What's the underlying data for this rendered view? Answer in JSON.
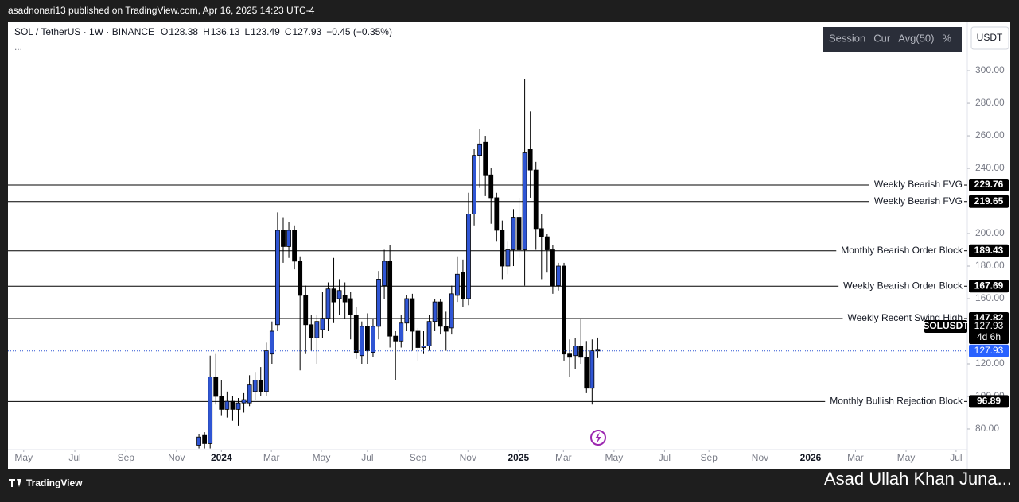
{
  "header": {
    "published": "asadnonari13 published on TradingView.com, Apr 16, 2025 14:23 UTC-4"
  },
  "toolbar": [
    "Session",
    "Cur",
    "Avg(50)",
    "%"
  ],
  "currency": "USDT",
  "footer": {
    "brand": "TradingView",
    "watermark": "Asad Ullah Khan Juna..."
  },
  "chart_data": {
    "type": "candlestick",
    "symbol": "SOL / TetherUS · 1W · BINANCE",
    "ohlc_letters": [
      "O",
      "H",
      "L",
      "C"
    ],
    "change": "−0.45 (−0.35%)",
    "more": "...",
    "ticker": "SOLUSDT",
    "countdown": "4d 6h",
    "up_color": "#2f55d4",
    "down_color": "#000000",
    "x": [
      0,
      1,
      2,
      3,
      4,
      5,
      6,
      7,
      8,
      9,
      10,
      11,
      12,
      13,
      14,
      15,
      16,
      17,
      18,
      19,
      20,
      21,
      22,
      23,
      24,
      25,
      26,
      27,
      28,
      29,
      30,
      31,
      32,
      33,
      34,
      35,
      36,
      37,
      38,
      39,
      40,
      41,
      42,
      43,
      44,
      45,
      46,
      47,
      48,
      49,
      50,
      51,
      52,
      53,
      54,
      55,
      56,
      57,
      58,
      59,
      60,
      61,
      62,
      63,
      64,
      65,
      66,
      67,
      68,
      69,
      70,
      71
    ],
    "open": [
      70,
      76,
      71,
      112,
      100,
      92,
      97,
      92,
      96,
      96,
      103,
      110,
      103,
      126,
      144,
      202,
      192,
      202,
      183,
      162,
      144,
      136,
      141,
      148,
      166,
      160,
      162,
      160,
      150,
      125,
      143,
      127,
      143,
      168,
      183,
      137,
      134,
      145,
      160,
      140,
      130,
      131,
      146,
      158,
      143,
      142,
      162,
      176,
      160,
      212,
      248,
      256,
      236,
      222,
      202,
      180,
      190,
      210,
      190,
      252,
      239,
      203,
      198,
      190,
      168,
      180,
      126,
      125,
      131,
      124,
      105,
      128.38
    ],
    "high": [
      77,
      78,
      125,
      126,
      110,
      103,
      100,
      99,
      102,
      113,
      115,
      118,
      133,
      146,
      213,
      210,
      207,
      205,
      186,
      168,
      150,
      150,
      164,
      170,
      185,
      172,
      170,
      164,
      155,
      146,
      151,
      148,
      177,
      190,
      193,
      140,
      150,
      162,
      163,
      142,
      140,
      150,
      160,
      160,
      152,
      168,
      186,
      184,
      225,
      252,
      264,
      260,
      240,
      225,
      208,
      195,
      215,
      222,
      295,
      275,
      244,
      212,
      200,
      193,
      182,
      182,
      135,
      136,
      148,
      134,
      135,
      136.13
    ],
    "low": [
      68,
      68,
      68,
      95,
      88,
      87,
      85,
      82,
      90,
      94,
      98,
      100,
      100,
      120,
      140,
      182,
      185,
      178,
      116,
      126,
      128,
      120,
      136,
      140,
      145,
      150,
      148,
      135,
      123,
      120,
      120,
      124,
      135,
      160,
      130,
      110,
      130,
      140,
      128,
      122,
      126,
      128,
      140,
      138,
      128,
      138,
      158,
      155,
      156,
      205,
      228,
      223,
      206,
      195,
      172,
      175,
      180,
      185,
      168,
      222,
      190,
      172,
      176,
      163,
      165,
      122,
      112,
      117,
      120,
      102,
      95,
      123.49
    ],
    "close": [
      75,
      71,
      112,
      100,
      92,
      97,
      92,
      96,
      98,
      107,
      110,
      103,
      128,
      140,
      202,
      192,
      202,
      183,
      162,
      144,
      136,
      146,
      148,
      166,
      158,
      165,
      158,
      150,
      127,
      143,
      128,
      143,
      172,
      183,
      137,
      134,
      145,
      160,
      140,
      130,
      131,
      146,
      158,
      143,
      140,
      163,
      175,
      160,
      212,
      248,
      255,
      236,
      222,
      202,
      180,
      190,
      210,
      190,
      250,
      239,
      203,
      198,
      190,
      168,
      180,
      126,
      124,
      131,
      124,
      105,
      128,
      127.93
    ],
    "xlim": [
      -34,
      136.8
    ],
    "xticks": [
      {
        "value": -31.2,
        "label": "May"
      },
      {
        "value": -22.1,
        "label": "Jul"
      },
      {
        "value": -13.0,
        "label": "Sep"
      },
      {
        "value": -4.0,
        "label": "Nov"
      },
      {
        "value": 4.0,
        "label": "2024"
      },
      {
        "value": 12.9,
        "label": "Mar"
      },
      {
        "value": 21.8,
        "label": "May"
      },
      {
        "value": 30.0,
        "label": "Jul"
      },
      {
        "value": 39.0,
        "label": "Sep"
      },
      {
        "value": 47.9,
        "label": "Nov"
      },
      {
        "value": 56.9,
        "label": "2025"
      },
      {
        "value": 64.9,
        "label": "Mar"
      },
      {
        "value": 73.9,
        "label": "May"
      },
      {
        "value": 82.9,
        "label": "Jul"
      },
      {
        "value": 90.8,
        "label": "Sep"
      },
      {
        "value": 99.9,
        "label": "Nov"
      },
      {
        "value": 108.9,
        "label": "2026"
      },
      {
        "value": 116.9,
        "label": "Mar"
      },
      {
        "value": 125.9,
        "label": "May"
      },
      {
        "value": 134.8,
        "label": "Jul"
      }
    ],
    "ylim": [
      67.3,
      329.8
    ],
    "yticks": [
      {
        "value": 80,
        "label": "80.00"
      },
      {
        "value": 100,
        "label": "100.00"
      },
      {
        "value": 120,
        "label": "120.00"
      },
      {
        "value": 160,
        "label": "160.00"
      },
      {
        "value": 180,
        "label": "180.00"
      },
      {
        "value": 200,
        "label": "200.00"
      },
      {
        "value": 240,
        "label": "240.00"
      },
      {
        "value": 260,
        "label": "260.00"
      },
      {
        "value": 280,
        "label": "280.00"
      },
      {
        "value": 300,
        "label": "300.00"
      }
    ],
    "grid": false,
    "levels": [
      {
        "value": 229.76,
        "label": "Weekly Bearish FVG"
      },
      {
        "value": 219.65,
        "label": "Weekly Bearish FVG"
      },
      {
        "value": 189.43,
        "label": "Monthly Bearish Order Block"
      },
      {
        "value": 167.69,
        "label": "Weekly Bearish Order Block"
      },
      {
        "value": 147.82,
        "label": "Weekly Recent Swing High"
      },
      {
        "value": 96.89,
        "label": "Monthly Bullish Rejection Block"
      }
    ]
  }
}
